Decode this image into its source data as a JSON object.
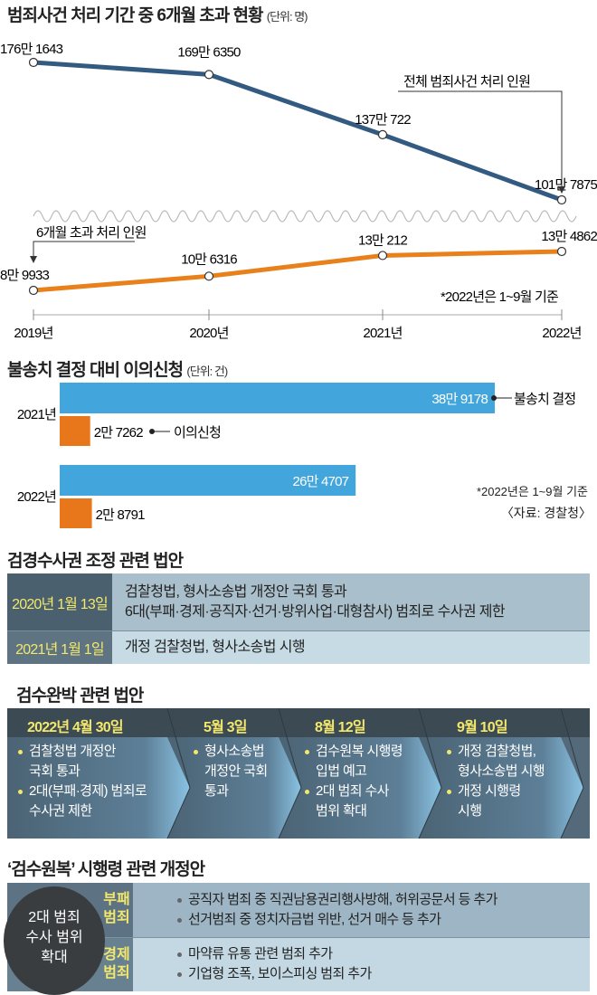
{
  "section1": {
    "title": "범죄사건 처리 기간 중 6개월 초과 현황",
    "unit": "(단위: 명)",
    "note": "*2022년은 1~9월 기준",
    "total_series_label": "전체 범죄사건 처리 인원",
    "over6m_series_label": "6개월 초과 처리 인원"
  },
  "chart_data": [
    {
      "type": "line",
      "title": "범죄사건 처리 기간 중 6개월 초과 현황",
      "unit": "명",
      "categories": [
        "2019년",
        "2020년",
        "2021년",
        "2022년"
      ],
      "y_axis": "broken",
      "series": [
        {
          "name": "전체 범죄사건 처리 인원",
          "color": "#335a80",
          "values": [
            1761643,
            1696350,
            1370722,
            1017875
          ],
          "labels": [
            "176만 1643",
            "169만 6350",
            "137만 722",
            "101만 7875"
          ]
        },
        {
          "name": "6개월 초과 처리 인원",
          "color": "#e8801c",
          "values": [
            89933,
            106316,
            130212,
            134862
          ],
          "labels": [
            "8만 9933",
            "10만 6316",
            "13만 212",
            "13만 4862"
          ]
        }
      ]
    },
    {
      "type": "bar",
      "orientation": "horizontal",
      "title": "불송치 결정 대비 이의신청",
      "unit": "(단위: 건)",
      "categories": [
        "2021년",
        "2022년"
      ],
      "series": [
        {
          "name": "불송치 결정",
          "color": "#42a6dc",
          "values": [
            389178,
            264707
          ],
          "labels": [
            "38만 9178",
            "26만 4707"
          ]
        },
        {
          "name": "이의신청",
          "color": "#e8761a",
          "values": [
            27262,
            28791
          ],
          "labels": [
            "2만 7262",
            "2만 8791"
          ]
        }
      ],
      "note": "*2022년은 1~9월 기준",
      "source": "〈자료: 경찰청〉"
    }
  ],
  "section3": {
    "title": "검경수사권 조정 관련 법안",
    "rows": [
      {
        "date": "2020년 1월 13일",
        "lines": [
          "검찰청법, 형사소송법 개정안 국회 통과",
          "6대(부패·경제·공직자·선거·방위사업·대형참사) 범죄로 수사권 제한"
        ]
      },
      {
        "date": "2021년 1월 1일",
        "lines": [
          "개정 검찰청법, 형사소송법 시행"
        ]
      }
    ]
  },
  "section4": {
    "title": "검수완박 관련 법안",
    "steps": [
      {
        "date": "2022년 4월 30일",
        "items": [
          [
            "검찰청법 개정안",
            "국회 통과"
          ],
          [
            "2대(부패·경제) 범죄로",
            "수사권 제한"
          ]
        ]
      },
      {
        "date": "5월 3일",
        "items": [
          [
            "형사소송법",
            "개정안 국회",
            "통과"
          ]
        ]
      },
      {
        "date": "8월 12일",
        "items": [
          [
            "검수원복 시행령",
            "입법 예고"
          ],
          [
            "2대 범죄 수사",
            "범위 확대"
          ]
        ]
      },
      {
        "date": "9월 10일",
        "items": [
          [
            "개정 검찰청법,",
            "형사소송법 시행"
          ],
          [
            "개정 시행령",
            "시행"
          ]
        ]
      }
    ]
  },
  "section5": {
    "title": "‘검수원복’ 시행령 관련 개정안",
    "circle": [
      "2대 범죄",
      "수사 범위",
      "확대"
    ],
    "groups": [
      {
        "category": [
          "부패",
          "범죄"
        ],
        "items": [
          "공직자 범죄 중 직권남용권리행사방해, 허위공문서 등 추가",
          "선거범죄 중 정치자금법 위반, 선거 매수 등 추가"
        ]
      },
      {
        "category": [
          "경제",
          "범죄"
        ],
        "items": [
          "마약류 유통 관련 범죄 추가",
          "기업형 조폭, 보이스피싱 범죄 추가"
        ]
      }
    ]
  }
}
